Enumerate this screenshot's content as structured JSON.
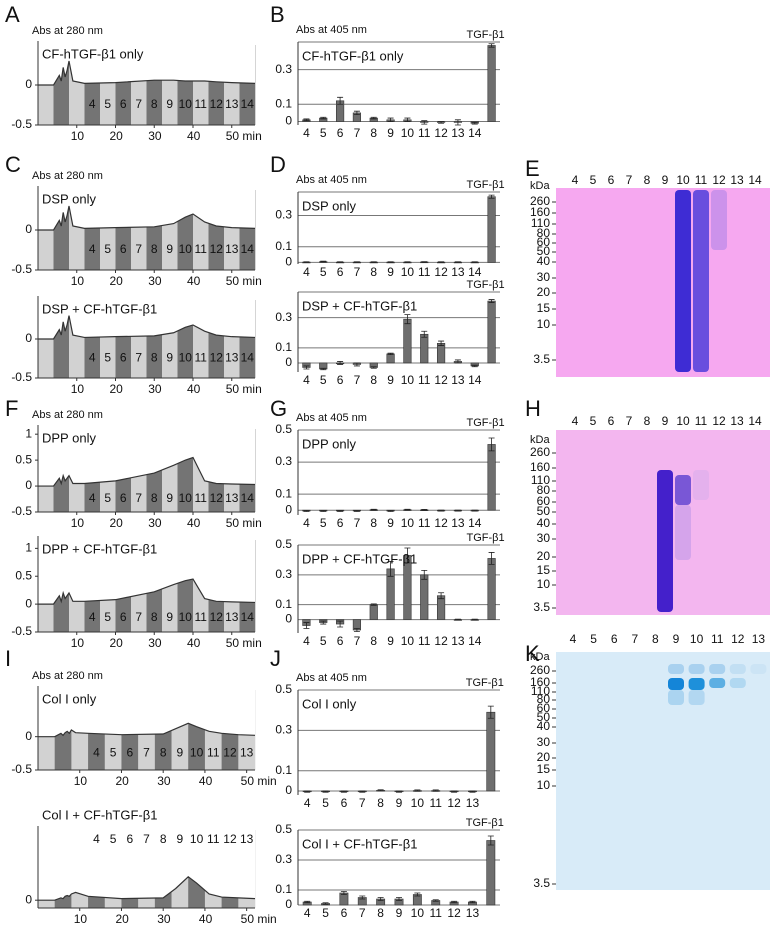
{
  "panel_letters": [
    "A",
    "B",
    "C",
    "D",
    "E",
    "F",
    "G",
    "H",
    "I",
    "J",
    "K"
  ],
  "chart_data": [
    {
      "type": "area",
      "ylabel": "Abs at 280 nm",
      "title": "CF-hTGF-β1 only",
      "x": [
        0,
        4,
        5.5,
        6,
        6.5,
        7,
        7.5,
        8,
        9,
        12,
        20,
        30,
        35,
        38,
        40,
        43,
        46,
        50,
        56
      ],
      "values": [
        0,
        0,
        0.12,
        0.05,
        0.22,
        0.1,
        0.18,
        0.3,
        0.05,
        0.02,
        0.03,
        0.06,
        0.06,
        0.05,
        0.05,
        0.05,
        0.04,
        0.03,
        0.02
      ],
      "fractions": [
        "4",
        "5",
        "6",
        "7",
        "8",
        "9",
        "10",
        "11",
        "12",
        "13",
        "14"
      ],
      "xlim": [
        0,
        56
      ],
      "ylim": [
        -0.5,
        0.5
      ],
      "xticks": [
        10,
        20,
        30,
        40,
        {
          "value": 50,
          "label": "50 min"
        }
      ],
      "yticks": [
        0,
        -0.5
      ]
    },
    {
      "type": "bar",
      "ylabel": "Abs at 405 nm",
      "title": "CF-hTGF-β1 only",
      "categories": [
        "4",
        "5",
        "6",
        "7",
        "8",
        "9",
        "10",
        "11",
        "12",
        "13",
        "14",
        "TGF-β1"
      ],
      "values": [
        0.01,
        0.02,
        0.12,
        0.05,
        0.02,
        0.01,
        0.01,
        -0.005,
        -0.005,
        -0.005,
        -0.01,
        0.44
      ],
      "errors": [
        0.005,
        0.005,
        0.02,
        0.01,
        0.005,
        0.01,
        0.01,
        0.01,
        0.005,
        0.015,
        0.005,
        0.01
      ],
      "ylim": [
        -0.02,
        0.46
      ],
      "yticks": [
        0,
        0.1,
        0.3
      ]
    },
    {
      "type": "area",
      "ylabel": "Abs at 280 nm",
      "title": "DSP only",
      "x": [
        0,
        4,
        5.5,
        6,
        6.5,
        7,
        7.5,
        8,
        9,
        12,
        20,
        30,
        35,
        38,
        40,
        43,
        46,
        50,
        56
      ],
      "values": [
        0,
        0,
        0.12,
        0.05,
        0.22,
        0.1,
        0.18,
        0.3,
        0.05,
        0.02,
        0.03,
        0.04,
        0.08,
        0.16,
        0.2,
        0.1,
        0.05,
        0.03,
        0.02
      ],
      "fractions": [
        "4",
        "5",
        "6",
        "7",
        "8",
        "9",
        "10",
        "11",
        "12",
        "13",
        "14"
      ],
      "xlim": [
        0,
        56
      ],
      "ylim": [
        -0.5,
        0.5
      ],
      "xticks": [
        10,
        20,
        30,
        40,
        {
          "value": 50,
          "label": "50 min"
        }
      ],
      "yticks": [
        0,
        -0.5
      ]
    },
    {
      "type": "area",
      "title": "DSP + CF-hTGF-β1",
      "x": [
        0,
        4,
        5.5,
        6,
        6.5,
        7,
        7.5,
        8,
        9,
        12,
        20,
        30,
        35,
        38,
        40,
        43,
        46,
        50,
        56
      ],
      "values": [
        0,
        0,
        0.12,
        0.05,
        0.22,
        0.1,
        0.18,
        0.3,
        0.05,
        0.02,
        0.03,
        0.04,
        0.08,
        0.15,
        0.18,
        0.1,
        0.05,
        0.03,
        0.02
      ],
      "fractions": [
        "4",
        "5",
        "6",
        "7",
        "8",
        "9",
        "10",
        "11",
        "12",
        "13",
        "14"
      ],
      "xlim": [
        0,
        56
      ],
      "ylim": [
        -0.5,
        0.5
      ],
      "xticks": [
        10,
        20,
        30,
        40,
        {
          "value": 50,
          "label": "50 min"
        }
      ],
      "yticks": [
        0,
        -0.5
      ]
    },
    {
      "type": "bar",
      "ylabel": "Abs at 405 nm",
      "title": "DSP only",
      "categories": [
        "4",
        "5",
        "6",
        "7",
        "8",
        "9",
        "10",
        "11",
        "12",
        "13",
        "14",
        "TGF-β1"
      ],
      "values": [
        0.002,
        0.005,
        0.002,
        0.002,
        0.002,
        0.002,
        0.002,
        0.003,
        0.002,
        0.002,
        0.002,
        0.42
      ],
      "errors": [
        0.002,
        0.003,
        0.002,
        0.002,
        0.002,
        0.002,
        0.002,
        0.002,
        0.002,
        0.002,
        0.002,
        0.01
      ],
      "ylim": [
        -0.01,
        0.45
      ],
      "yticks": [
        0,
        0.1,
        0.3
      ]
    },
    {
      "type": "bar",
      "title": "DSP + CF-hTGF-β1",
      "categories": [
        "4",
        "5",
        "6",
        "7",
        "8",
        "9",
        "10",
        "11",
        "12",
        "13",
        "14",
        "TGF-β1"
      ],
      "values": [
        -0.03,
        -0.04,
        0.0,
        -0.01,
        -0.03,
        0.06,
        0.29,
        0.19,
        0.13,
        0.01,
        -0.02,
        0.41
      ],
      "errors": [
        0.01,
        0.005,
        0.01,
        0.01,
        0.005,
        0.005,
        0.03,
        0.02,
        0.015,
        0.01,
        0.005,
        0.01
      ],
      "ylim": [
        -0.06,
        0.47
      ],
      "yticks": [
        0,
        0.1,
        0.3
      ]
    },
    {
      "type": "area",
      "ylabel": "Abs at 280 nm",
      "title": "DPP only",
      "x": [
        0,
        4,
        5.5,
        6,
        6.5,
        7,
        7.5,
        8,
        9,
        12,
        20,
        30,
        35,
        38,
        40,
        43,
        46,
        50,
        56
      ],
      "values": [
        0,
        0,
        0.15,
        0.05,
        0.2,
        0.1,
        0.15,
        0.2,
        0.05,
        0.05,
        0.1,
        0.25,
        0.4,
        0.5,
        0.55,
        0.1,
        0.05,
        0.04,
        0.03
      ],
      "fractions": [
        "4",
        "5",
        "6",
        "7",
        "8",
        "9",
        "10",
        "11",
        "12",
        "13",
        "14"
      ],
      "xlim": [
        0,
        56
      ],
      "ylim": [
        -0.5,
        1.1
      ],
      "xticks": [
        10,
        20,
        30,
        40,
        {
          "value": 50,
          "label": "50 min"
        }
      ],
      "yticks": [
        1,
        0.5,
        0,
        -0.5
      ]
    },
    {
      "type": "area",
      "title": "DPP + CF-hTGF-β1",
      "x": [
        0,
        4,
        5.5,
        6,
        6.5,
        7,
        7.5,
        8,
        9,
        12,
        20,
        30,
        35,
        38,
        40,
        43,
        46,
        50,
        56
      ],
      "values": [
        0,
        0,
        0.15,
        0.05,
        0.2,
        0.1,
        0.15,
        0.2,
        0.05,
        0.05,
        0.08,
        0.22,
        0.35,
        0.42,
        0.45,
        0.1,
        0.05,
        0.04,
        0.03
      ],
      "fractions": [
        "4",
        "5",
        "6",
        "7",
        "8",
        "9",
        "10",
        "11",
        "12",
        "13",
        "14"
      ],
      "xlim": [
        0,
        56
      ],
      "ylim": [
        -0.5,
        1.15
      ],
      "xticks": [
        10,
        20,
        30,
        40,
        {
          "value": 50,
          "label": "50 min"
        }
      ],
      "yticks": [
        1,
        0.5,
        0,
        -0.5
      ]
    },
    {
      "type": "bar",
      "ylabel": "Abs at 405 nm",
      "title": "DPP only",
      "categories": [
        "4",
        "5",
        "6",
        "7",
        "8",
        "9",
        "10",
        "11",
        "12",
        "13",
        "14",
        "TGF-β1"
      ],
      "values": [
        -0.005,
        -0.005,
        -0.005,
        -0.005,
        0.003,
        -0.005,
        0.003,
        0.002,
        -0.003,
        -0.003,
        -0.003,
        0.41
      ],
      "errors": [
        0.003,
        0.003,
        0.003,
        0.003,
        0.003,
        0.003,
        0.003,
        0.003,
        0.003,
        0.003,
        0.003,
        0.04
      ],
      "ylim": [
        -0.03,
        0.5
      ],
      "yticks": [
        0,
        0.1,
        0.3,
        0.5
      ]
    },
    {
      "type": "bar",
      "title": "DPP + CF-hTGF-β1",
      "categories": [
        "4",
        "5",
        "6",
        "7",
        "8",
        "9",
        "10",
        "11",
        "12",
        "13",
        "14",
        "TGF-β1"
      ],
      "values": [
        -0.04,
        -0.02,
        -0.03,
        -0.07,
        0.1,
        0.34,
        0.43,
        0.3,
        0.16,
        0.0,
        0.0,
        0.41
      ],
      "errors": [
        0.02,
        0.01,
        0.02,
        0.01,
        0.005,
        0.05,
        0.05,
        0.03,
        0.02,
        0.003,
        0.003,
        0.04
      ],
      "ylim": [
        -0.09,
        0.5
      ],
      "yticks": [
        0,
        0.1,
        0.3,
        0.5
      ]
    },
    {
      "type": "area",
      "ylabel": "Abs at 280 nm",
      "title": "Col I only",
      "x": [
        0,
        4,
        5.5,
        6,
        6.5,
        7,
        7.5,
        8,
        9,
        12,
        20,
        30,
        33,
        36,
        38,
        41,
        44,
        48,
        52
      ],
      "values": [
        0,
        0,
        0.05,
        0.02,
        0.06,
        0.08,
        0.05,
        0.1,
        0.06,
        0.05,
        0.03,
        0.04,
        0.12,
        0.2,
        0.15,
        0.08,
        0.05,
        0.03,
        0.02
      ],
      "fractions": [
        "4",
        "5",
        "6",
        "7",
        "8",
        "9",
        "10",
        "11",
        "12",
        "13"
      ],
      "xlim": [
        0,
        52
      ],
      "ylim": [
        -0.5,
        0.7
      ],
      "xticks": [
        10,
        20,
        30,
        40,
        {
          "value": 50,
          "label": "50 min"
        }
      ],
      "yticks": [
        0,
        -0.5
      ]
    },
    {
      "type": "area",
      "title": "Col I + CF-hTGF-β1",
      "x": [
        0,
        4,
        5.5,
        6,
        6.5,
        7,
        7.5,
        8,
        9,
        12,
        20,
        30,
        33,
        36,
        38,
        41,
        44,
        48,
        52
      ],
      "values": [
        0,
        0,
        0.03,
        0.02,
        0.05,
        0.06,
        0.05,
        0.08,
        0.1,
        0.05,
        0.02,
        0.03,
        0.15,
        0.3,
        0.22,
        0.08,
        0.04,
        0.03,
        0.02
      ],
      "fractions": [
        "4",
        "5",
        "6",
        "7",
        "8",
        "9",
        "10",
        "11",
        "12",
        "13"
      ],
      "xlim": [
        0,
        52
      ],
      "ylim": [
        -0.1,
        0.9
      ],
      "xticks": [
        10,
        20,
        30,
        40,
        {
          "value": 50,
          "label": "50 min"
        }
      ],
      "yticks": [
        0
      ]
    },
    {
      "type": "bar",
      "ylabel": "Abs at 405 nm",
      "title": "Col I only",
      "categories": [
        "4",
        "5",
        "6",
        "7",
        "8",
        "9",
        "10",
        "11",
        "12",
        "13",
        "TGF-β1"
      ],
      "values": [
        -0.003,
        -0.003,
        -0.003,
        -0.003,
        0.003,
        -0.003,
        0.002,
        0.002,
        -0.003,
        -0.003,
        0.39
      ],
      "errors": [
        0.003,
        0.003,
        0.003,
        0.003,
        0.003,
        0.003,
        0.003,
        0.003,
        0.003,
        0.003,
        0.03
      ],
      "ylim": [
        -0.02,
        0.5
      ],
      "yticks": [
        0,
        0.1,
        0.3,
        0.5
      ]
    },
    {
      "type": "bar",
      "title": "Col I + CF-hTGF-β1",
      "categories": [
        "4",
        "5",
        "6",
        "7",
        "8",
        "9",
        "10",
        "11",
        "12",
        "13",
        "TGF-β1"
      ],
      "values": [
        0.02,
        0.01,
        0.08,
        0.05,
        0.04,
        0.04,
        0.07,
        0.03,
        0.02,
        0.02,
        0.43
      ],
      "errors": [
        0.005,
        0.005,
        0.01,
        0.01,
        0.01,
        0.01,
        0.01,
        0.005,
        0.005,
        0.005,
        0.03
      ],
      "ylim": [
        0,
        0.5
      ],
      "yticks": [
        0,
        0.1,
        0.3,
        0.5
      ]
    }
  ],
  "gels": [
    {
      "kda_label": "kDa",
      "lanes": [
        "4",
        "5",
        "6",
        "7",
        "8",
        "9",
        "10",
        "11",
        "12",
        "13",
        "14"
      ],
      "ladder": [
        260,
        160,
        110,
        80,
        60,
        50,
        40,
        30,
        20,
        15,
        10,
        3.5
      ]
    },
    {
      "kda_label": "kDa",
      "lanes": [
        "4",
        "5",
        "6",
        "7",
        "8",
        "9",
        "10",
        "11",
        "12",
        "13",
        "14"
      ],
      "ladder": [
        260,
        160,
        110,
        80,
        60,
        50,
        40,
        30,
        20,
        15,
        10,
        3.5
      ]
    },
    {
      "kda_label": "kDa",
      "lanes": [
        "4",
        "5",
        "6",
        "7",
        "8",
        "9",
        "10",
        "11",
        "12",
        "13"
      ],
      "ladder": [
        260,
        160,
        110,
        80,
        60,
        50,
        40,
        30,
        20,
        15,
        10,
        3.5
      ]
    }
  ]
}
